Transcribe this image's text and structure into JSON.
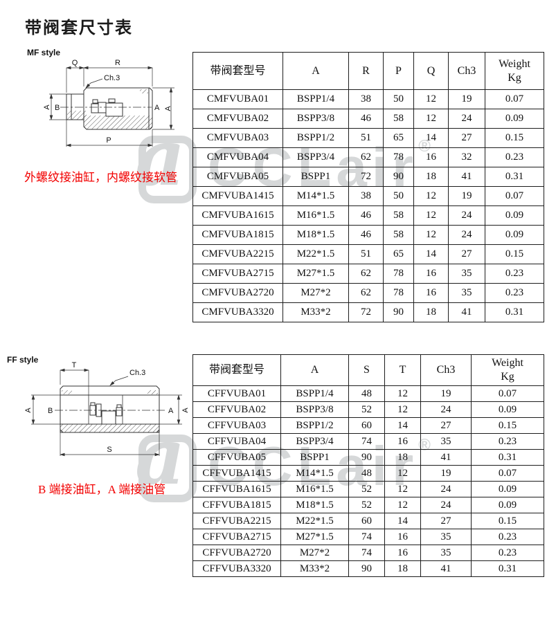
{
  "page": {
    "title": "带阀套尺寸表"
  },
  "colors": {
    "accent_red": "#f20000",
    "watermark_gray": "#d6d8d9",
    "line_dark": "#333333"
  },
  "watermark": {
    "logo_char": "a",
    "text": "CCLair",
    "reg_mark": "®"
  },
  "mf": {
    "style_label": "MF style",
    "caption": "外螺纹接油缸，内螺纹接软管",
    "labels": {
      "q": "Q",
      "r": "R",
      "ch3": "Ch.3",
      "a_left": "A",
      "b": "B",
      "a_right": "A",
      "a_outer": "A",
      "p": "P"
    }
  },
  "ff": {
    "style_label": "FF style",
    "caption": "B 端接油缸，A 端接油管",
    "labels": {
      "t": "T",
      "ch3": "Ch.3",
      "a_left": "A",
      "b": "B",
      "a_right": "A",
      "a_outer": "A",
      "s": "S"
    }
  },
  "table_mf": {
    "headers": [
      "带阀套型号",
      "A",
      "R",
      "P",
      "Q",
      "Ch3",
      "Weight\nKg"
    ],
    "rows": [
      [
        "CMFVUBA01",
        "BSPP1/4",
        "38",
        "50",
        "12",
        "19",
        "0.07"
      ],
      [
        "CMFVUBA02",
        "BSPP3/8",
        "46",
        "58",
        "12",
        "24",
        "0.09"
      ],
      [
        "CMFVUBA03",
        "BSPP1/2",
        "51",
        "65",
        "14",
        "27",
        "0.15"
      ],
      [
        "CMFVUBA04",
        "BSPP3/4",
        "62",
        "78",
        "16",
        "32",
        "0.23"
      ],
      [
        "CMFVUBA05",
        "BSPP1",
        "72",
        "90",
        "18",
        "41",
        "0.31"
      ],
      [
        "CMFVUBA1415",
        "M14*1.5",
        "38",
        "50",
        "12",
        "19",
        "0.07"
      ],
      [
        "CMFVUBA1615",
        "M16*1.5",
        "46",
        "58",
        "12",
        "24",
        "0.09"
      ],
      [
        "CMFVUBA1815",
        "M18*1.5",
        "46",
        "58",
        "12",
        "24",
        "0.09"
      ],
      [
        "CMFVUBA2215",
        "M22*1.5",
        "51",
        "65",
        "14",
        "27",
        "0.15"
      ],
      [
        "CMFVUBA2715",
        "M27*1.5",
        "62",
        "78",
        "16",
        "35",
        "0.23"
      ],
      [
        "CMFVUBA2720",
        "M27*2",
        "62",
        "78",
        "16",
        "35",
        "0.23"
      ],
      [
        "CMFVUBA3320",
        "M33*2",
        "72",
        "90",
        "18",
        "41",
        "0.31"
      ]
    ]
  },
  "table_ff": {
    "headers": [
      "带阀套型号",
      "A",
      "S",
      "T",
      "Ch3",
      "Weight\nKg"
    ],
    "rows": [
      [
        "CFFVUBA01",
        "BSPP1/4",
        "48",
        "12",
        "19",
        "0.07"
      ],
      [
        "CFFVUBA02",
        "BSPP3/8",
        "52",
        "12",
        "24",
        "0.09"
      ],
      [
        "CFFVUBA03",
        "BSPP1/2",
        "60",
        "14",
        "27",
        "0.15"
      ],
      [
        "CFFVUBA04",
        "BSPP3/4",
        "74",
        "16",
        "35",
        "0.23"
      ],
      [
        "CFFVUBA05",
        "BSPP1",
        "90",
        "18",
        "41",
        "0.31"
      ],
      [
        "CFFVUBA1415",
        "M14*1.5",
        "48",
        "12",
        "19",
        "0.07"
      ],
      [
        "CFFVUBA1615",
        "M16*1.5",
        "52",
        "12",
        "24",
        "0.09"
      ],
      [
        "CFFVUBA1815",
        "M18*1.5",
        "52",
        "12",
        "24",
        "0.09"
      ],
      [
        "CFFVUBA2215",
        "M22*1.5",
        "60",
        "14",
        "27",
        "0.15"
      ],
      [
        "CFFVUBA2715",
        "M27*1.5",
        "74",
        "16",
        "35",
        "0.23"
      ],
      [
        "CFFVUBA2720",
        "M27*2",
        "74",
        "16",
        "35",
        "0.23"
      ],
      [
        "CFFVUBA3320",
        "M33*2",
        "90",
        "18",
        "41",
        "0.31"
      ]
    ]
  }
}
